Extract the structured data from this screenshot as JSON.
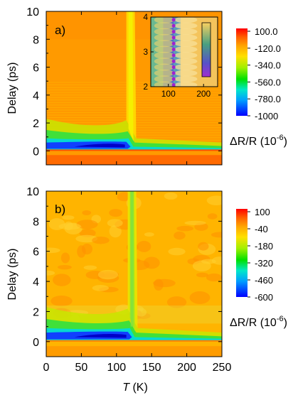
{
  "chart_data": [
    {
      "type": "heatmap",
      "panel_label": "a)",
      "xlabel": "",
      "ylabel": "Delay (ps)",
      "xlim": [
        0,
        250
      ],
      "ylim": [
        -1,
        10
      ],
      "x_ticks": [
        "0",
        "50",
        "100",
        "150",
        "200",
        "250"
      ],
      "x_ticks_shown": false,
      "y_ticks": [
        "0",
        "2",
        "4",
        "6",
        "8",
        "10"
      ],
      "colorbar": {
        "labels": [
          "100.0",
          "-120.0",
          "-340.0",
          "-560.0",
          "-780.0",
          "-1000"
        ],
        "range": [
          -1000,
          100
        ],
        "title": "ΔR/R (10",
        "title_exponent": "-6",
        "title_close": ")"
      },
      "features": {
        "background_level": -130,
        "transition_temperature_K": 120,
        "negative_band_delay_ps": 0.3,
        "negative_band_minimum": -1000,
        "negative_band_temperature_range_K": [
          0,
          120
        ],
        "oscillations_visible_below_delay_ps": 5
      },
      "inset": {
        "x_ticks": [
          "100",
          "200"
        ],
        "y_ticks": [
          "2",
          "3",
          "4"
        ],
        "xlim": [
          50,
          240
        ],
        "ylim": [
          2,
          4
        ]
      }
    },
    {
      "type": "heatmap",
      "panel_label": "b)",
      "xlabel": "T (K)",
      "xlabel_var": "T",
      "xlabel_unit": " (K)",
      "ylabel": "Delay (ps)",
      "xlim": [
        0,
        250
      ],
      "ylim": [
        -1,
        10
      ],
      "x_ticks": [
        "0",
        "50",
        "100",
        "150",
        "200",
        "250"
      ],
      "y_ticks": [
        "0",
        "2",
        "4",
        "6",
        "8",
        "10"
      ],
      "colorbar": {
        "labels": [
          "100",
          "-40",
          "-180",
          "-320",
          "-460",
          "-600"
        ],
        "range": [
          -600,
          100
        ],
        "title": "ΔR/R (10",
        "title_exponent": "-6",
        "title_close": ")"
      },
      "features": {
        "background_level": -60,
        "transition_temperature_K": 122,
        "negative_band_delay_ps": 0.3,
        "negative_band_minimum": -600,
        "negative_band_temperature_range_K": [
          0,
          120
        ]
      }
    }
  ]
}
